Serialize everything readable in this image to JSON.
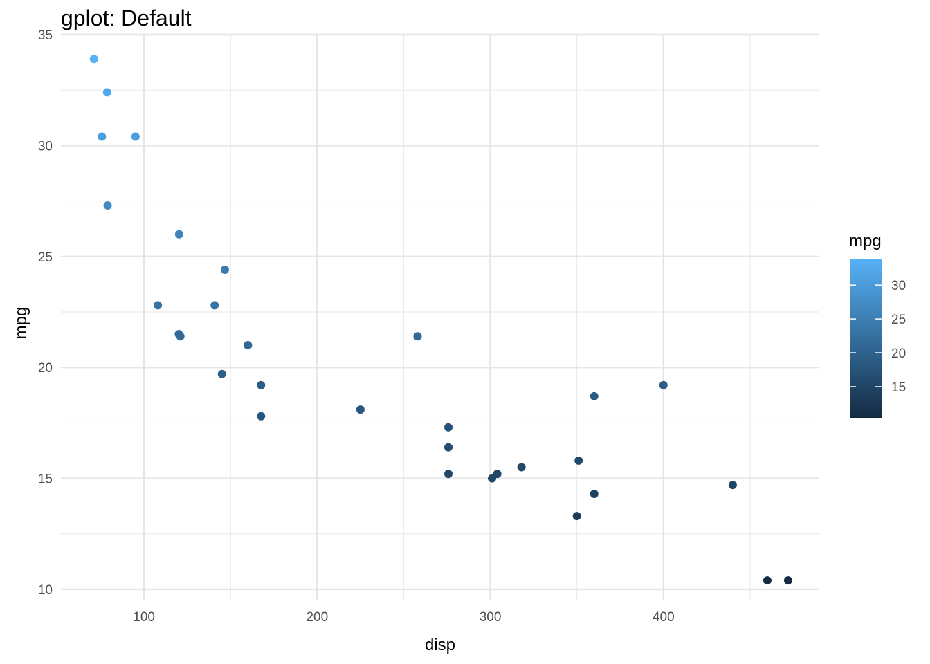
{
  "chart_data": {
    "type": "scatter",
    "title": "gplot: Default",
    "xlabel": "disp",
    "ylabel": "mpg",
    "xlim": [
      52,
      490
    ],
    "ylim": [
      9.5,
      35
    ],
    "x_ticks": [
      100,
      200,
      300,
      400
    ],
    "y_ticks": [
      10,
      15,
      20,
      25,
      30,
      35
    ],
    "grid": true,
    "legend": {
      "title": "mpg",
      "placement": "right",
      "type": "colorbar",
      "range": [
        10.4,
        33.9
      ],
      "ticks": [
        15,
        20,
        25,
        30
      ],
      "color_low": "#132B43",
      "color_high": "#56B1F7"
    },
    "points": [
      {
        "x": 71.1,
        "y": 33.9
      },
      {
        "x": 78.7,
        "y": 32.4
      },
      {
        "x": 75.7,
        "y": 30.4
      },
      {
        "x": 95.1,
        "y": 30.4
      },
      {
        "x": 79.0,
        "y": 27.3
      },
      {
        "x": 120.3,
        "y": 26.0
      },
      {
        "x": 146.7,
        "y": 24.4
      },
      {
        "x": 108.0,
        "y": 22.8
      },
      {
        "x": 140.8,
        "y": 22.8
      },
      {
        "x": 120.1,
        "y": 21.5
      },
      {
        "x": 121.0,
        "y": 21.4
      },
      {
        "x": 258.0,
        "y": 21.4
      },
      {
        "x": 160.0,
        "y": 21.0
      },
      {
        "x": 160.0,
        "y": 21.0
      },
      {
        "x": 145.0,
        "y": 19.7
      },
      {
        "x": 167.6,
        "y": 19.2
      },
      {
        "x": 400.0,
        "y": 19.2
      },
      {
        "x": 360.0,
        "y": 18.7
      },
      {
        "x": 225.0,
        "y": 18.1
      },
      {
        "x": 167.6,
        "y": 17.8
      },
      {
        "x": 275.8,
        "y": 17.3
      },
      {
        "x": 275.8,
        "y": 16.4
      },
      {
        "x": 351.0,
        "y": 15.8
      },
      {
        "x": 318.0,
        "y": 15.5
      },
      {
        "x": 275.8,
        "y": 15.2
      },
      {
        "x": 304.0,
        "y": 15.2
      },
      {
        "x": 301.0,
        "y": 15.0
      },
      {
        "x": 440.0,
        "y": 14.7
      },
      {
        "x": 360.0,
        "y": 14.3
      },
      {
        "x": 350.0,
        "y": 13.3
      },
      {
        "x": 460.0,
        "y": 10.4
      },
      {
        "x": 472.0,
        "y": 10.4
      }
    ]
  }
}
